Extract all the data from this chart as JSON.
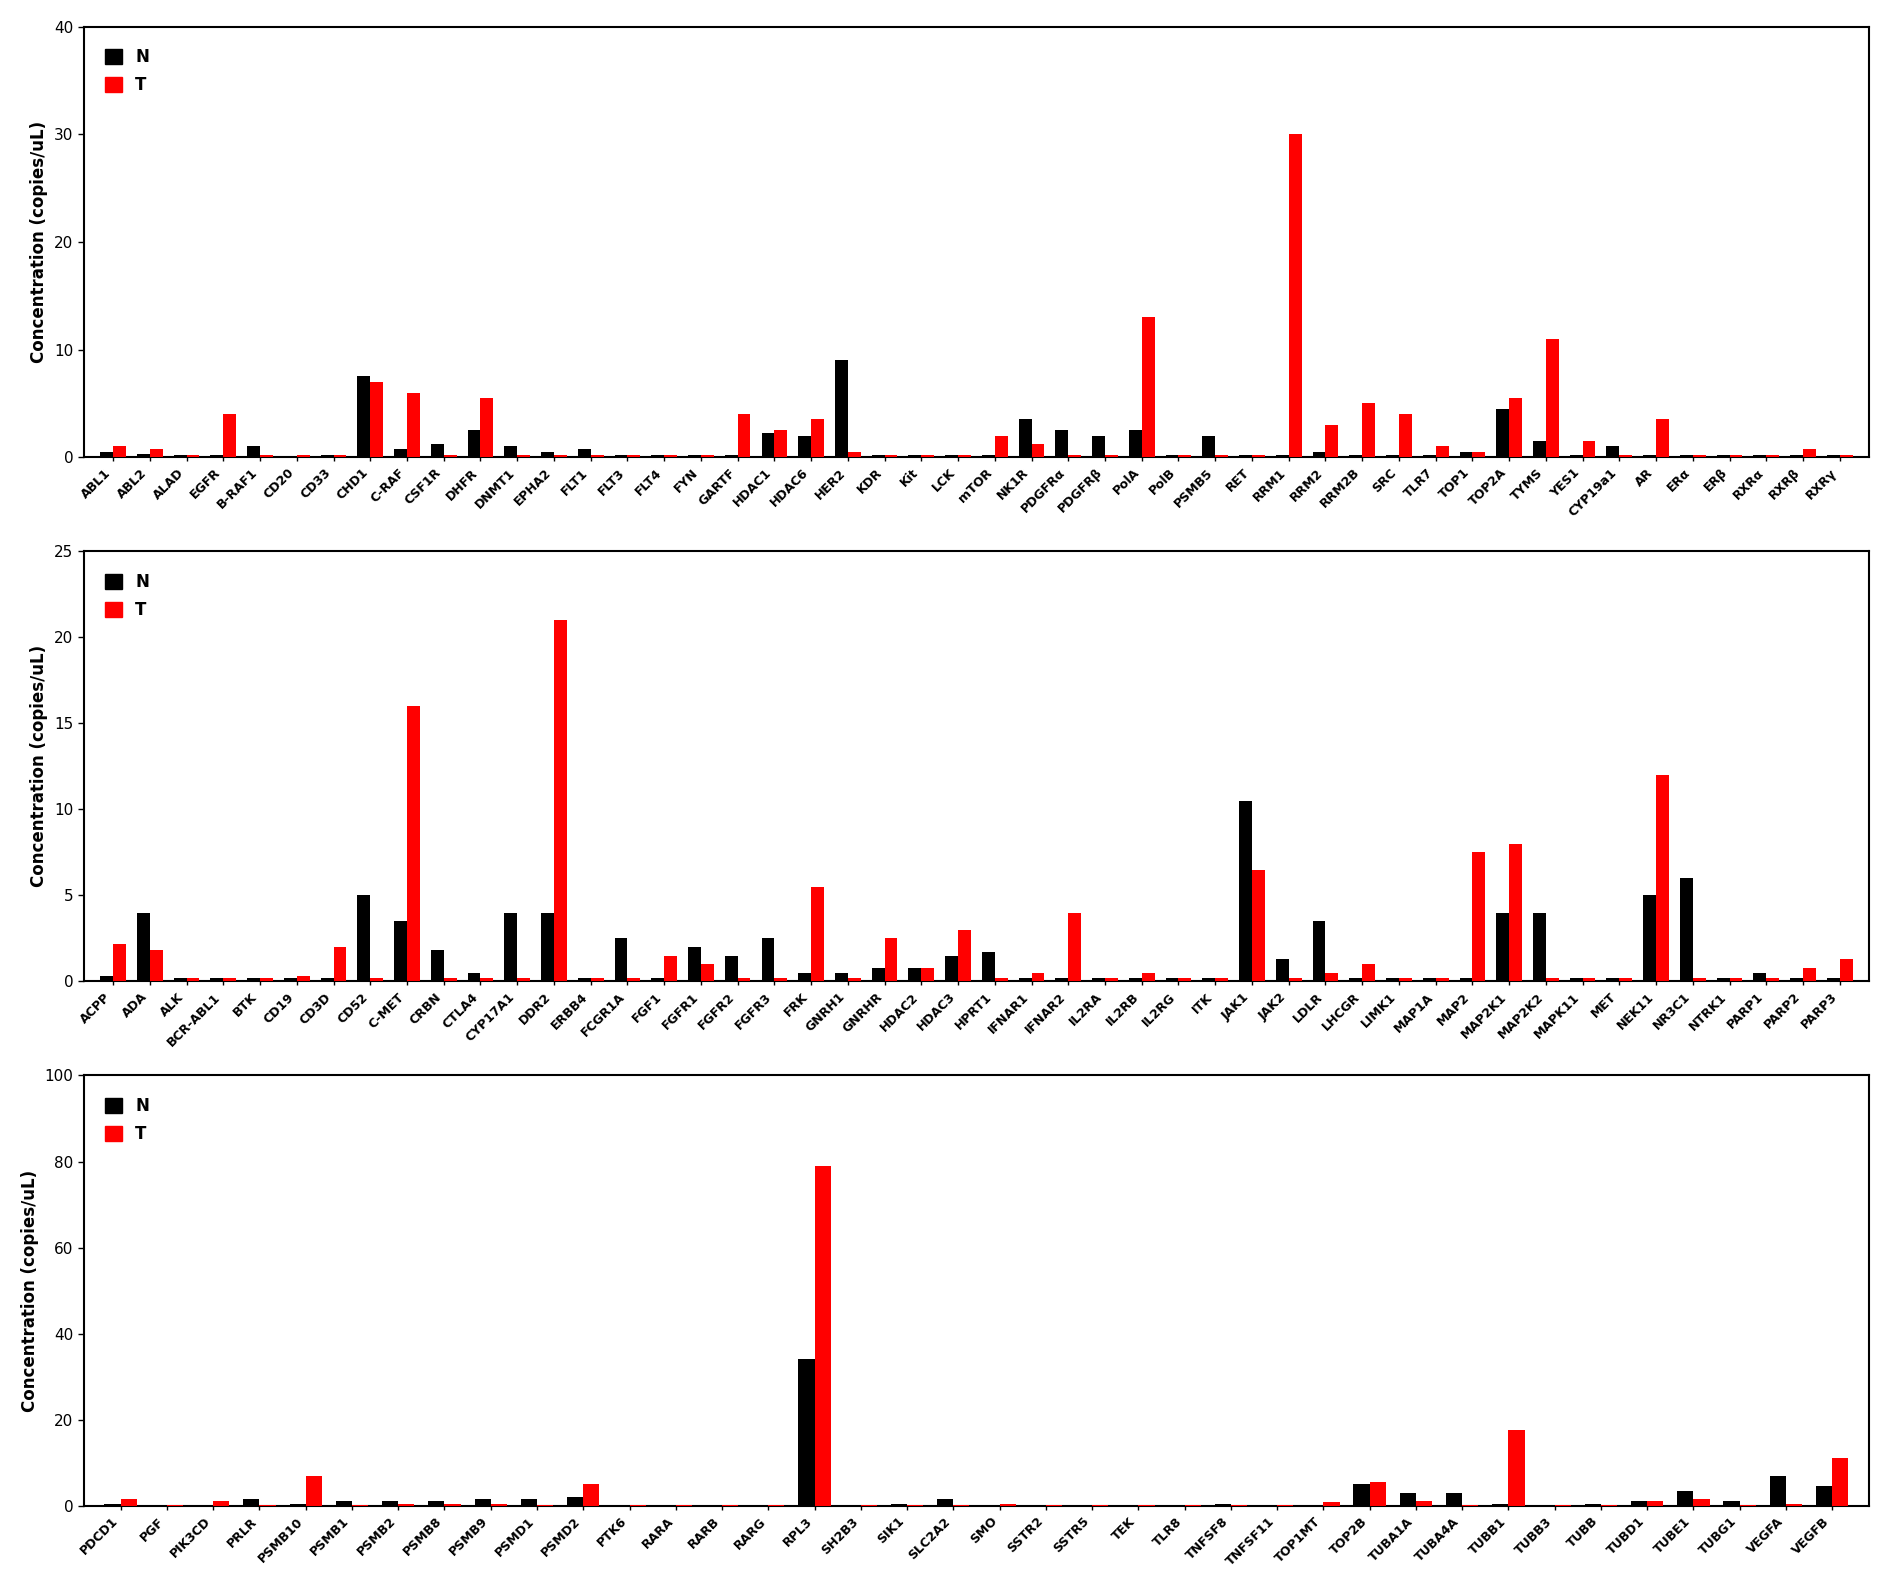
{
  "panel1": {
    "ylim": [
      0,
      40
    ],
    "yticks": [
      0,
      10,
      20,
      30,
      40
    ],
    "ylabel": "Concentration (copies/uL)",
    "categories": [
      "ABL1",
      "ABL2",
      "ALAD",
      "EGFR",
      "B-RAF1",
      "CD20",
      "CD33",
      "CHD1",
      "C-RAF",
      "CSF1R",
      "DHFR",
      "DNMT1",
      "EPHA2",
      "FLT1",
      "FLT3",
      "FLT4",
      "FYN",
      "GARTF",
      "HDAC1",
      "HDAC6",
      "HER2",
      "KDR",
      "Kit",
      "LCK",
      "mTOR",
      "NK1R",
      "PDGFRα",
      "PDGFRβ",
      "PolA",
      "PolB",
      "PSMB5",
      "RET",
      "RRM1",
      "RRM2",
      "RRM2B",
      "SRC",
      "TLR7",
      "TOP1",
      "TOP2A",
      "TYMS",
      "YES1",
      "CYP19a1",
      "AR",
      "ERα",
      "ERβ",
      "RXRα",
      "RXRβ",
      "RXRγ"
    ],
    "N": [
      0.5,
      0.3,
      0.2,
      0.2,
      1.0,
      0.1,
      0.2,
      7.5,
      0.8,
      1.2,
      2.5,
      1.0,
      0.5,
      0.8,
      0.2,
      0.2,
      0.2,
      0.2,
      2.2,
      2.0,
      9.0,
      0.2,
      0.2,
      0.2,
      0.2,
      3.5,
      2.5,
      2.0,
      2.5,
      0.2,
      2.0,
      0.2,
      0.2,
      0.5,
      0.2,
      0.2,
      0.2,
      0.5,
      4.5,
      1.5,
      0.2,
      1.0,
      0.2,
      0.2,
      0.2,
      0.2,
      0.2,
      0.2
    ],
    "T": [
      1.0,
      0.8,
      0.2,
      4.0,
      0.2,
      0.2,
      0.2,
      7.0,
      6.0,
      0.2,
      5.5,
      0.2,
      0.2,
      0.2,
      0.2,
      0.2,
      0.2,
      4.0,
      2.5,
      3.5,
      0.5,
      0.2,
      0.2,
      0.2,
      2.0,
      1.2,
      0.2,
      0.2,
      13.0,
      0.2,
      0.2,
      0.2,
      30.0,
      3.0,
      5.0,
      4.0,
      1.0,
      0.5,
      5.5,
      11.0,
      1.5,
      0.2,
      3.5,
      0.2,
      0.2,
      0.2,
      0.8,
      0.2
    ]
  },
  "panel2": {
    "ylim": [
      0,
      25
    ],
    "yticks": [
      0,
      5,
      10,
      15,
      20,
      25
    ],
    "ylabel": "Concentration (copies/uL)",
    "categories": [
      "ACPP",
      "ADA",
      "ALK",
      "BCR-ABL1",
      "BTK",
      "CD19",
      "CD3D",
      "CD52",
      "C-MET",
      "CRBN",
      "CTLA4",
      "CYP17A1",
      "DDR2",
      "ERBB4",
      "FCGR1A",
      "FGF1",
      "FGFR1",
      "FGFR2",
      "FGFR3",
      "FRK",
      "GNRH1",
      "GNRHR",
      "HDAC2",
      "HDAC3",
      "HPRT1",
      "IFNAR1",
      "IFNAR2",
      "IL2RA",
      "IL2RB",
      "IL2RG",
      "ITK",
      "JAK1",
      "JAK2",
      "LDLR",
      "LHCGR",
      "LIMK1",
      "MAP1A",
      "MAP2",
      "MAP2K1",
      "MAP2K2",
      "MAPK11",
      "MET",
      "NEK11",
      "NR3C1",
      "NTRK1",
      "PARP1",
      "PARP2",
      "PARP3"
    ],
    "N": [
      0.3,
      4.0,
      0.2,
      0.2,
      0.2,
      0.2,
      0.2,
      5.0,
      3.5,
      1.8,
      0.5,
      4.0,
      4.0,
      0.2,
      2.5,
      0.2,
      2.0,
      1.5,
      2.5,
      0.5,
      0.5,
      0.8,
      0.8,
      1.5,
      1.7,
      0.2,
      0.2,
      0.2,
      0.2,
      0.2,
      0.2,
      10.5,
      1.3,
      3.5,
      0.2,
      0.2,
      0.2,
      0.2,
      4.0,
      4.0,
      0.2,
      0.2,
      5.0,
      6.0,
      0.2,
      0.5,
      0.2,
      0.2
    ],
    "T": [
      2.2,
      1.8,
      0.2,
      0.2,
      0.2,
      0.3,
      2.0,
      0.2,
      16.0,
      0.2,
      0.2,
      0.2,
      21.0,
      0.2,
      0.2,
      1.5,
      1.0,
      0.2,
      0.2,
      5.5,
      0.2,
      2.5,
      0.8,
      3.0,
      0.2,
      0.5,
      4.0,
      0.2,
      0.5,
      0.2,
      0.2,
      6.5,
      0.2,
      0.5,
      1.0,
      0.2,
      0.2,
      7.5,
      8.0,
      0.2,
      0.2,
      0.2,
      12.0,
      0.2,
      0.2,
      0.2,
      0.8,
      1.3
    ]
  },
  "panel3": {
    "ylim": [
      0,
      100
    ],
    "yticks": [
      0,
      20,
      40,
      60,
      80,
      100
    ],
    "ylabel": "Concentration (copies/uL)",
    "categories": [
      "PDCD1",
      "PGF",
      "PIK3CD",
      "PRLR",
      "PSMB10",
      "PSMB1",
      "PSMB2",
      "PSMB8",
      "PSMB9",
      "PSMD1",
      "PSMD2",
      "PTK6",
      "RARA",
      "RARB",
      "RARG",
      "RPL3",
      "SH2B3",
      "SIK1",
      "SLC2A2",
      "SMO",
      "SSTR2",
      "SSTR5",
      "TEK",
      "TLR8",
      "TNFSF8",
      "TNFSF11",
      "TOP1MT",
      "TOP2B",
      "TUBA1A",
      "TUBA4A",
      "TUBB1",
      "TUBB3",
      "TUBB",
      "TUBD1",
      "TUBE1",
      "TUBG1",
      "VEGFA",
      "VEGFB"
    ],
    "N": [
      0.5,
      0.2,
      0.2,
      1.5,
      0.5,
      1.0,
      1.0,
      1.0,
      1.5,
      1.5,
      2.0,
      0.2,
      0.2,
      0.2,
      0.2,
      34.0,
      0.2,
      0.5,
      1.5,
      0.2,
      0.2,
      0.2,
      0.2,
      0.2,
      0.5,
      0.2,
      0.2,
      5.0,
      3.0,
      3.0,
      0.5,
      0.2,
      0.5,
      1.0,
      3.5,
      1.0,
      7.0,
      4.5
    ],
    "T": [
      1.5,
      0.2,
      1.0,
      0.2,
      7.0,
      0.2,
      0.5,
      0.5,
      0.5,
      0.2,
      5.0,
      0.2,
      0.2,
      0.2,
      0.2,
      79.0,
      0.2,
      0.2,
      0.2,
      0.5,
      0.2,
      0.2,
      0.2,
      0.2,
      0.2,
      0.2,
      0.8,
      5.5,
      1.0,
      0.2,
      17.5,
      0.2,
      0.2,
      1.0,
      1.5,
      0.2,
      0.5,
      11.0
    ]
  },
  "bar_width": 0.35,
  "N_color": "#000000",
  "T_color": "#FF0000",
  "background_color": "#FFFFFF",
  "legend_N": "N",
  "legend_T": "T",
  "label_rotation": 45,
  "label_fontsize": 9,
  "ylabel_fontsize": 12,
  "ytick_fontsize": 11,
  "legend_fontsize": 12
}
